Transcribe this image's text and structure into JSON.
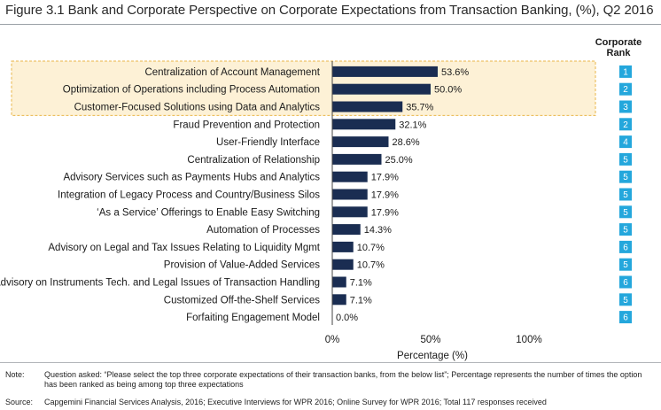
{
  "title": "Figure 3.1 Bank and Corporate Perspective on Corporate Expectations from Transaction Banking, (%), Q2 2016",
  "rank_header": {
    "line1": "Corporate",
    "line2": "Rank"
  },
  "colors": {
    "bar": "#1a2d52",
    "rank_box": "#24a7dc",
    "highlight_fill": "#fdf1d6",
    "highlight_border": "#e9b64a"
  },
  "chart_data": {
    "type": "bar",
    "orientation": "horizontal",
    "categories": [
      "Centralization of Account Management",
      "Optimization of Operations including Process Automation",
      "Customer-Focused Solutions using Data and Analytics",
      "Fraud Prevention and Protection",
      "User-Friendly Interface",
      "Centralization of Relationship",
      "Advisory Services such as Payments Hubs and Analytics",
      "Integration of Legacy Process and Country/Business  Silos",
      "‘As a Service’ Offerings to Enable Easy Switching",
      "Automation of Processes",
      "Advisory on Legal and Tax Issues Relating to Liquidity Mgmt",
      "Provision of Value-Added Services",
      "Advisory on Instruments Tech. and Legal Issues of Transaction Handling",
      "Customized Off-the-Shelf Services",
      "Forfaiting Engagement Model"
    ],
    "values": [
      53.6,
      50.0,
      35.7,
      32.1,
      28.6,
      25.0,
      17.9,
      17.9,
      17.9,
      14.3,
      10.7,
      10.7,
      7.1,
      7.1,
      0.0
    ],
    "value_labels": [
      "53.6%",
      "50.0%",
      "35.7%",
      "32.1%",
      "28.6%",
      "25.0%",
      "17.9%",
      "17.9%",
      "17.9%",
      "14.3%",
      "10.7%",
      "10.7%",
      "7.1%",
      "7.1%",
      "0.0%"
    ],
    "corporate_rank": [
      "1",
      "2",
      "3",
      "2",
      "4",
      "5",
      "5",
      "5",
      "5",
      "5",
      "6",
      "5",
      "6",
      "5",
      "6"
    ],
    "highlighted_top": 3,
    "xlim": [
      0,
      100
    ],
    "xticks": [
      "0%",
      "50%",
      "100%"
    ],
    "xlabel": "Percentage (%)",
    "ylabel": ""
  },
  "notes": {
    "note_key": "Note:",
    "note_text": "Question asked: “Please select the top three corporate expectations of their transaction banks, from the below list”; Percentage represents the number of times the option has been ranked as being among top three expectations",
    "source_key": "Source:",
    "source_text": "Capgemini Financial Services Analysis, 2016; Executive Interviews for WPR 2016; Online Survey for WPR 2016; Total 117 responses received"
  }
}
